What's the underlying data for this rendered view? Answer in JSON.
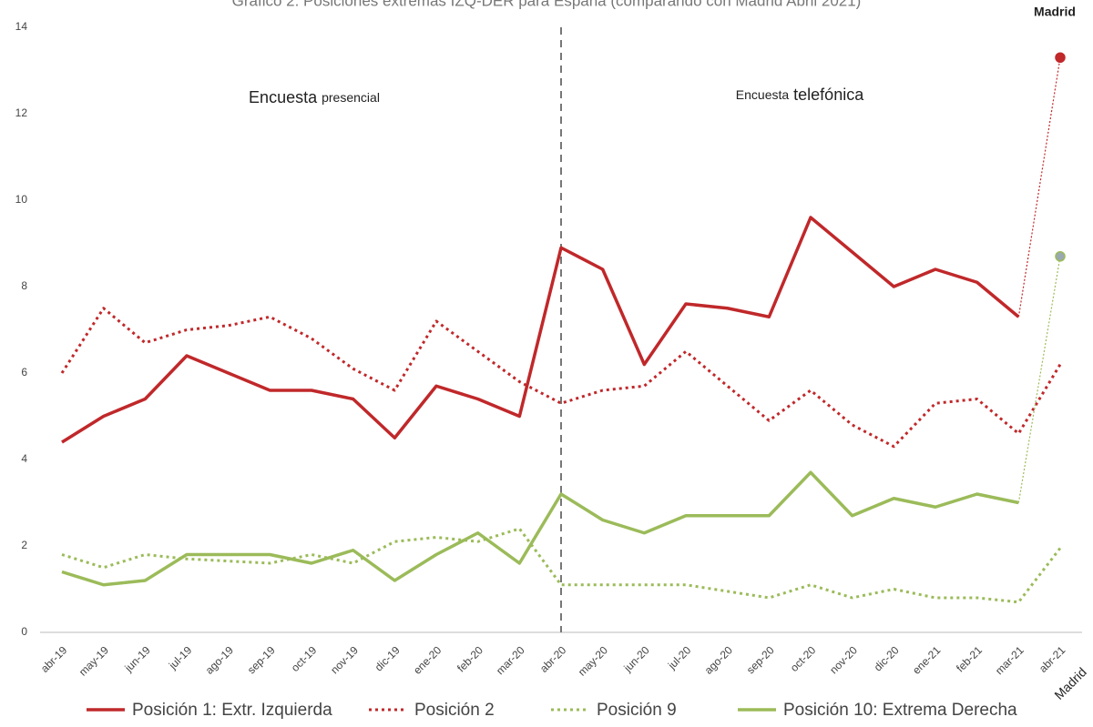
{
  "chart_data": {
    "type": "line",
    "title": "Gráfico 2. Posiciones extremas IZQ-DER para España (comparando con Madrid Abril 2021)",
    "categories": [
      "abr-19",
      "may-19",
      "jun-19",
      "jul-19",
      "ago-19",
      "sep-19",
      "oct-19",
      "nov-19",
      "dic-19",
      "ene-20",
      "feb-20",
      "mar-20",
      "abr-20",
      "may-20",
      "jun-20",
      "jul-20",
      "ago-20",
      "sep-20",
      "oct-20",
      "nov-20",
      "dic-20",
      "ene-21",
      "feb-21",
      "mar-21",
      "abr-21"
    ],
    "series": [
      {
        "name": "Posición 1: Extr. Izquierda",
        "color": "#c0282a",
        "style": "solid",
        "values": [
          4.4,
          5.0,
          5.4,
          6.4,
          6.0,
          5.6,
          5.6,
          5.4,
          4.5,
          5.7,
          5.4,
          5.0,
          8.9,
          8.4,
          6.2,
          7.6,
          7.5,
          7.3,
          9.6,
          8.8,
          8.0,
          8.4,
          8.1,
          7.3,
          13.3
        ]
      },
      {
        "name": "Posición 2",
        "color": "#c0282a",
        "style": "dotted",
        "values": [
          6.0,
          7.5,
          6.7,
          7.0,
          7.1,
          7.3,
          6.8,
          6.1,
          5.6,
          7.2,
          6.5,
          5.8,
          5.3,
          5.6,
          5.7,
          6.5,
          5.7,
          4.9,
          5.6,
          4.8,
          4.3,
          5.3,
          5.4,
          4.6,
          6.2
        ]
      },
      {
        "name": "Posición 9",
        "color": "#9bbb59",
        "style": "dotted",
        "values": [
          1.8,
          1.5,
          1.8,
          1.7,
          1.65,
          1.6,
          1.8,
          1.6,
          2.1,
          2.2,
          2.1,
          2.4,
          1.1,
          1.1,
          1.1,
          1.1,
          0.95,
          0.8,
          1.1,
          0.8,
          1.0,
          0.8,
          0.8,
          0.7,
          1.95
        ]
      },
      {
        "name": "Posición 10: Extrema Derecha",
        "color": "#9bbb59",
        "style": "solid",
        "values": [
          1.4,
          1.1,
          1.2,
          1.8,
          1.8,
          1.8,
          1.6,
          1.9,
          1.2,
          1.8,
          2.3,
          1.6,
          3.2,
          2.6,
          2.3,
          2.7,
          2.7,
          2.7,
          3.7,
          2.7,
          3.1,
          2.9,
          3.2,
          3.0,
          8.7
        ]
      }
    ],
    "ylim": [
      0,
      14
    ],
    "yticks": [
      0,
      2,
      4,
      6,
      8,
      10,
      12,
      14
    ],
    "divider": "abr-20",
    "annotations": [
      [
        "Encuesta",
        "presencial"
      ],
      [
        "Encuesta",
        "telefónica"
      ]
    ],
    "highlight_label": "Madrid",
    "legend": "bottom"
  }
}
